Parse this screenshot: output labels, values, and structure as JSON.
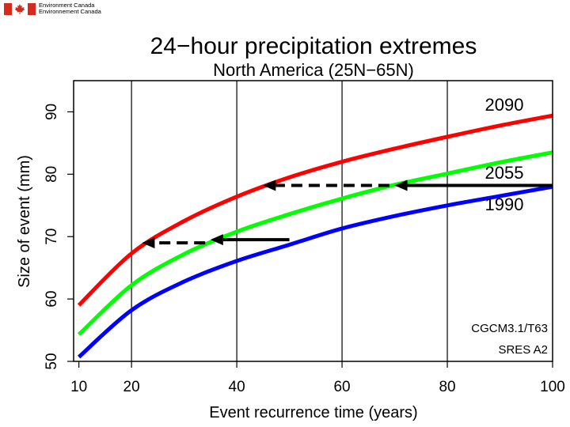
{
  "header": {
    "org_en": "Environment Canada",
    "org_fr": "Environnement Canada",
    "flag_colors": {
      "red": "#d52b1e",
      "white": "#ffffff"
    }
  },
  "chart_data": {
    "type": "line",
    "title": "24−hour precipitation extremes",
    "subtitle": "North America (25N−65N)",
    "xlabel": "Event recurrence time (years)",
    "ylabel": "Size of event (mm)",
    "xlim": [
      9,
      100
    ],
    "ylim": [
      50,
      95
    ],
    "x_ticks": [
      10,
      20,
      40,
      60,
      80,
      100
    ],
    "y_ticks": [
      50,
      60,
      70,
      80,
      90
    ],
    "vertical_gridlines": [
      20,
      40,
      60,
      80
    ],
    "series": [
      {
        "name": "1990",
        "color": "#0000ff",
        "x": [
          10,
          20,
          30,
          40,
          50,
          60,
          70,
          80,
          90,
          100
        ],
        "values": [
          50.7,
          58.2,
          62.8,
          66.1,
          68.7,
          71.3,
          73.3,
          75.0,
          76.5,
          78.0
        ]
      },
      {
        "name": "2055",
        "color": "#00ff00",
        "x": [
          10,
          20,
          30,
          40,
          50,
          60,
          70,
          80,
          90,
          100
        ],
        "values": [
          54.3,
          62.2,
          67.2,
          70.8,
          73.6,
          76.1,
          78.3,
          80.1,
          81.9,
          83.5
        ]
      },
      {
        "name": "2090",
        "color": "#ff0000",
        "x": [
          10,
          20,
          30,
          40,
          50,
          60,
          70,
          80,
          90,
          100
        ],
        "values": [
          59.0,
          67.3,
          72.5,
          76.4,
          79.5,
          82.0,
          84.1,
          86.0,
          87.8,
          89.4
        ]
      }
    ],
    "arrows": [
      {
        "style": "solid",
        "from": [
          100,
          78.2
        ],
        "to": [
          70,
          78.2
        ]
      },
      {
        "style": "dashed",
        "from": [
          69,
          78.2
        ],
        "to": [
          45,
          78.2
        ]
      },
      {
        "style": "solid",
        "from": [
          50,
          69.5
        ],
        "to": [
          35,
          69.5
        ]
      },
      {
        "style": "dashed",
        "from": [
          34,
          69.0
        ],
        "to": [
          22,
          69.0
        ]
      }
    ],
    "annotations": [
      "CGCM3.1/T63",
      "SRES A2"
    ]
  }
}
